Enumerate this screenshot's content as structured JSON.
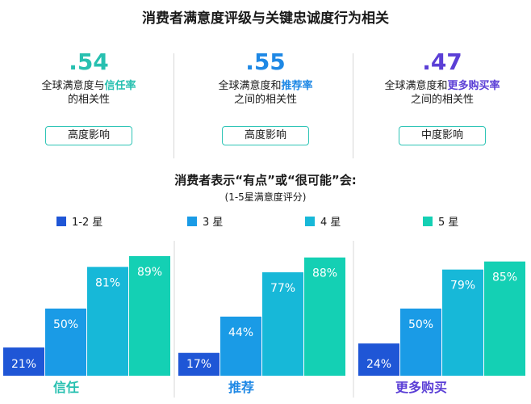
{
  "title": "消费者满意度评级与关键忠诚度行为相关",
  "stats": [
    {
      "value": ".54",
      "line1_pre": "全球满意度与",
      "line1_hl": "信任率",
      "line2": "的相关性",
      "badge": "高度影响",
      "color": "#27c0b0"
    },
    {
      "value": ".55",
      "line1_pre": "全球满意度和",
      "line1_hl": "推荐率",
      "line2": "之间的相关性",
      "badge": "高度影响",
      "color": "#1e88e5"
    },
    {
      "value": ".47",
      "line1_pre": "全球满意度和",
      "line1_hl": "更多购买率",
      "line2": "之间的相关性",
      "badge": "中度影响",
      "color": "#5b3fd6"
    }
  ],
  "subtitle": "消费者表示“有点”或“很可能”会:",
  "subnote": "(1-5星满意度评分)",
  "chart_data": {
    "type": "bar",
    "categories": [
      "信任",
      "推荐",
      "更多购买"
    ],
    "series": [
      {
        "name": "1-2 星",
        "values": [
          21,
          17,
          24
        ],
        "color": "#1f56d6"
      },
      {
        "name": "3 星",
        "values": [
          50,
          44,
          50
        ],
        "color": "#1a9be6"
      },
      {
        "name": "4 星",
        "values": [
          81,
          77,
          79
        ],
        "color": "#17b8d8"
      },
      {
        "name": "5 星",
        "values": [
          89,
          88,
          85
        ],
        "color": "#14d0b4"
      }
    ],
    "value_labels": [
      [
        "21%",
        "50%",
        "81%",
        "89%"
      ],
      [
        "17%",
        "44%",
        "77%",
        "88%"
      ],
      [
        "24%",
        "50%",
        "79%",
        "85%"
      ]
    ],
    "category_colors": [
      "#27c0b0",
      "#1e88e5",
      "#5b3fd6"
    ],
    "ylim": [
      0,
      100
    ]
  }
}
